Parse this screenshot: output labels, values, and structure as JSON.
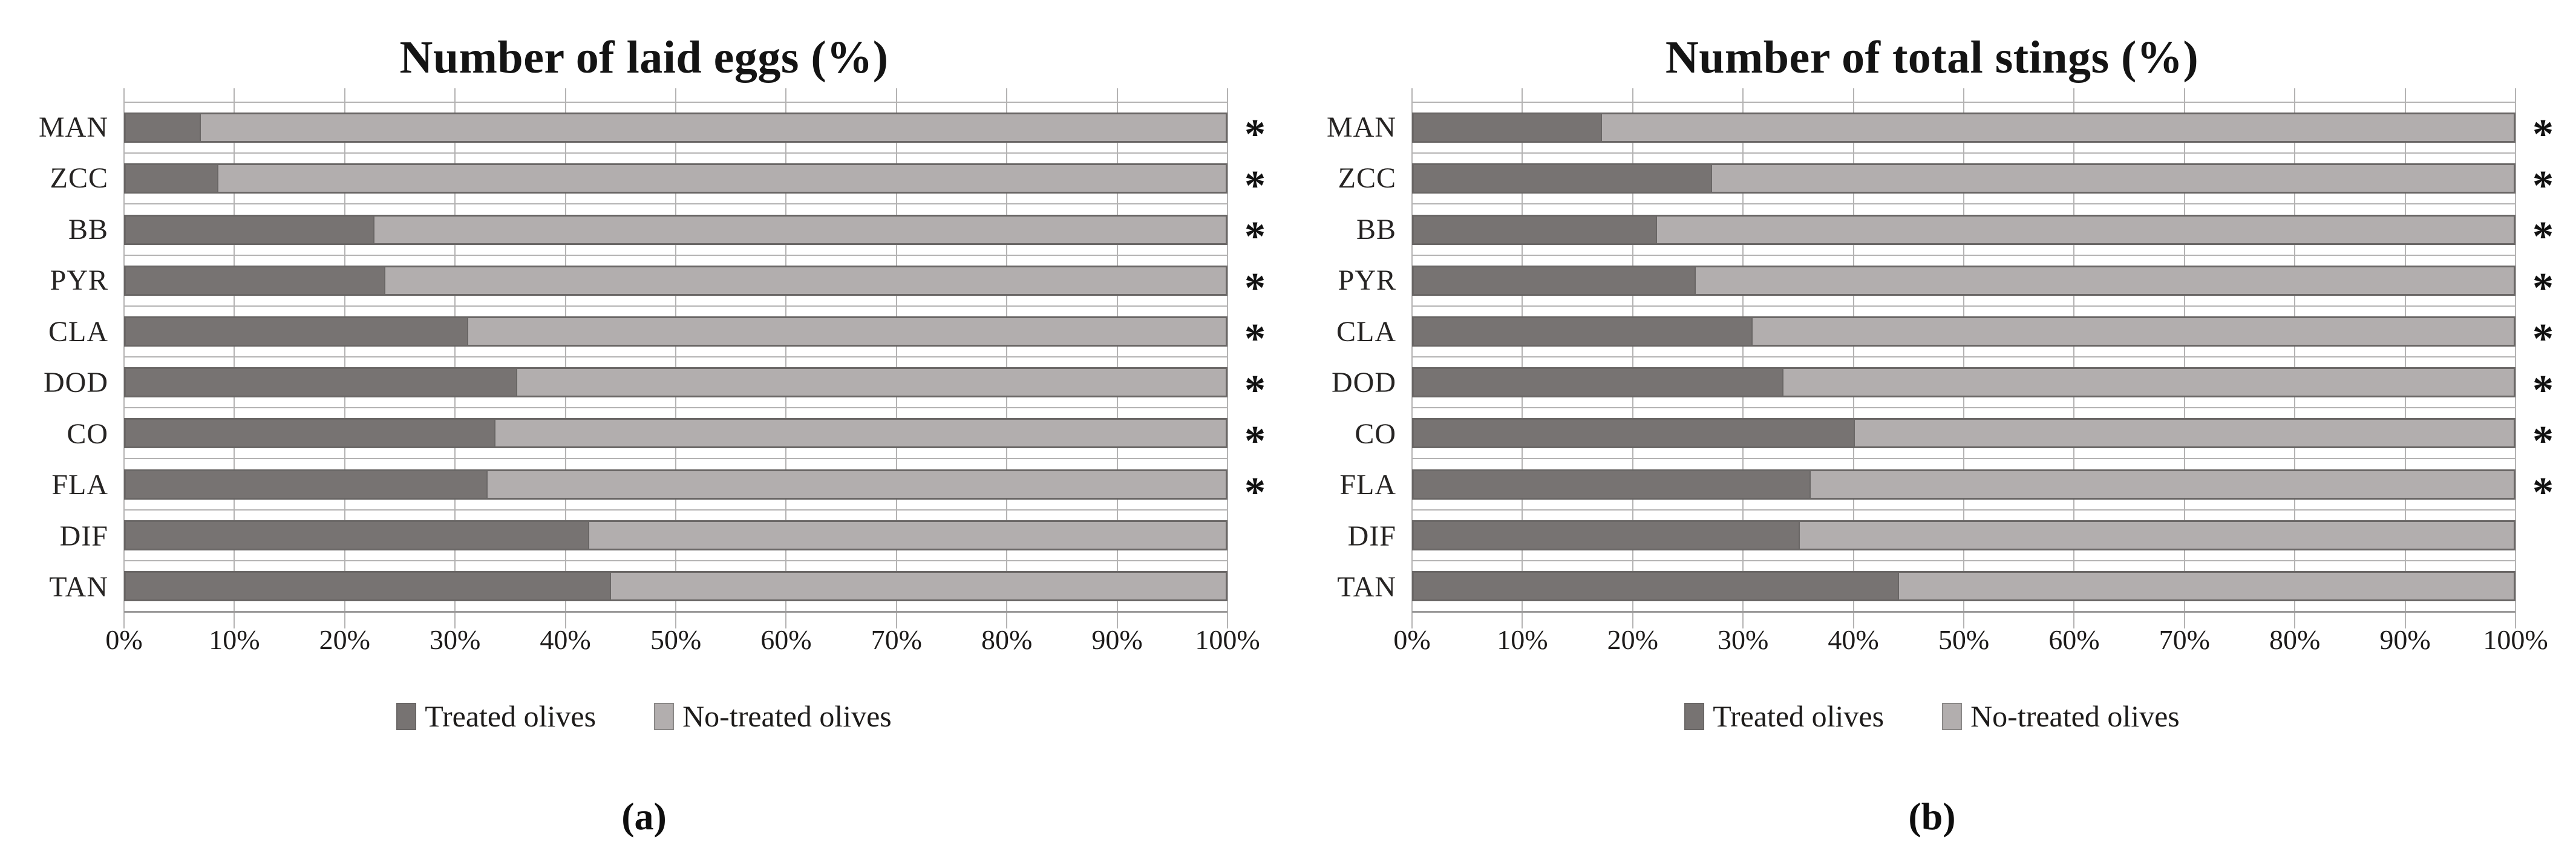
{
  "colors": {
    "treated_fill": "#777372",
    "no_treated_fill": "#b2aeae",
    "bar_border": "#6a6766",
    "gridline": "#b4b3b3",
    "axis_line": "#9a9999",
    "text": "#1d1b1a"
  },
  "chart_data": [
    {
      "type": "bar",
      "orientation": "horizontal",
      "stacked": true,
      "title": "Number of laid eggs (%)",
      "panel_label": "(a)",
      "categories": [
        "MAN",
        "ZCC",
        "BB",
        "PYR",
        "CLA",
        "DOD",
        "CO",
        "FLA",
        "DIF",
        "TAN"
      ],
      "series": [
        {
          "name": "Treated olives",
          "values": [
            6.7,
            8.3,
            22.5,
            23.5,
            31.0,
            35.5,
            33.5,
            32.8,
            42.0,
            44.0
          ]
        },
        {
          "name": "No-treated olives",
          "values": [
            93.3,
            91.7,
            77.5,
            76.5,
            69.0,
            64.5,
            66.5,
            67.2,
            58.0,
            56.0
          ]
        }
      ],
      "significance": [
        "*",
        "*",
        "*",
        "*",
        "*",
        "*",
        "*",
        "*",
        "",
        ""
      ],
      "x_tick_labels": [
        "0%",
        "10%",
        "20%",
        "30%",
        "40%",
        "50%",
        "60%",
        "70%",
        "80%",
        "90%",
        "100%"
      ],
      "xlim": [
        0,
        100
      ],
      "grid": true,
      "legend_position": "bottom"
    },
    {
      "type": "bar",
      "orientation": "horizontal",
      "stacked": true,
      "title": "Number of total stings (%)",
      "panel_label": "(b)",
      "categories": [
        "MAN",
        "ZCC",
        "BB",
        "PYR",
        "CLA",
        "DOD",
        "CO",
        "FLA",
        "DIF",
        "TAN"
      ],
      "series": [
        {
          "name": "Treated olives",
          "values": [
            17.0,
            27.0,
            22.0,
            25.5,
            30.7,
            33.5,
            40.0,
            36.0,
            35.0,
            44.0
          ]
        },
        {
          "name": "No-treated olives",
          "values": [
            83.0,
            73.0,
            78.0,
            74.5,
            69.3,
            66.5,
            60.0,
            64.0,
            65.0,
            56.0
          ]
        }
      ],
      "significance": [
        "*",
        "*",
        "*",
        "*",
        "*",
        "*",
        "*",
        "*",
        "",
        ""
      ],
      "x_tick_labels": [
        "0%",
        "10%",
        "20%",
        "30%",
        "40%",
        "50%",
        "60%",
        "70%",
        "80%",
        "90%",
        "100%"
      ],
      "xlim": [
        0,
        100
      ],
      "grid": true,
      "legend_position": "bottom"
    }
  ]
}
